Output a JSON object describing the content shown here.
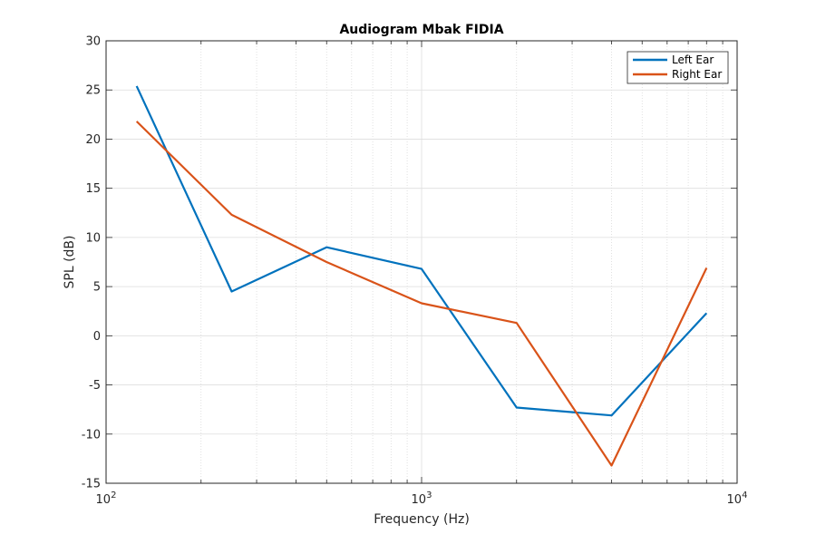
{
  "chart_data": {
    "type": "line",
    "title": "Audiogram Mbak FIDIA",
    "xlabel": "Frequency (Hz)",
    "ylabel": "SPL (dB)",
    "x_scale": "log",
    "xlim": [
      100,
      10000
    ],
    "ylim": [
      -15,
      30
    ],
    "x_ticks": [
      {
        "value": 100,
        "base": "10",
        "exp": "2"
      },
      {
        "value": 1000,
        "base": "10",
        "exp": "3"
      },
      {
        "value": 10000,
        "base": "10",
        "exp": "4"
      }
    ],
    "y_ticks": [
      "-15",
      "-10",
      "-5",
      "0",
      "5",
      "10",
      "15",
      "20",
      "25",
      "30"
    ],
    "grid": true,
    "minor_grid": true,
    "legend_position": "top-right",
    "x": [
      125,
      250,
      500,
      1000,
      2000,
      4000,
      8000
    ],
    "series": [
      {
        "name": "Left Ear",
        "color": "#0072BD",
        "values": [
          25.4,
          4.5,
          9.0,
          6.8,
          -7.3,
          -8.1,
          2.3
        ]
      },
      {
        "name": "Right Ear",
        "color": "#D95319",
        "values": [
          21.8,
          12.3,
          7.5,
          3.3,
          1.3,
          -13.2,
          6.9
        ]
      }
    ]
  }
}
